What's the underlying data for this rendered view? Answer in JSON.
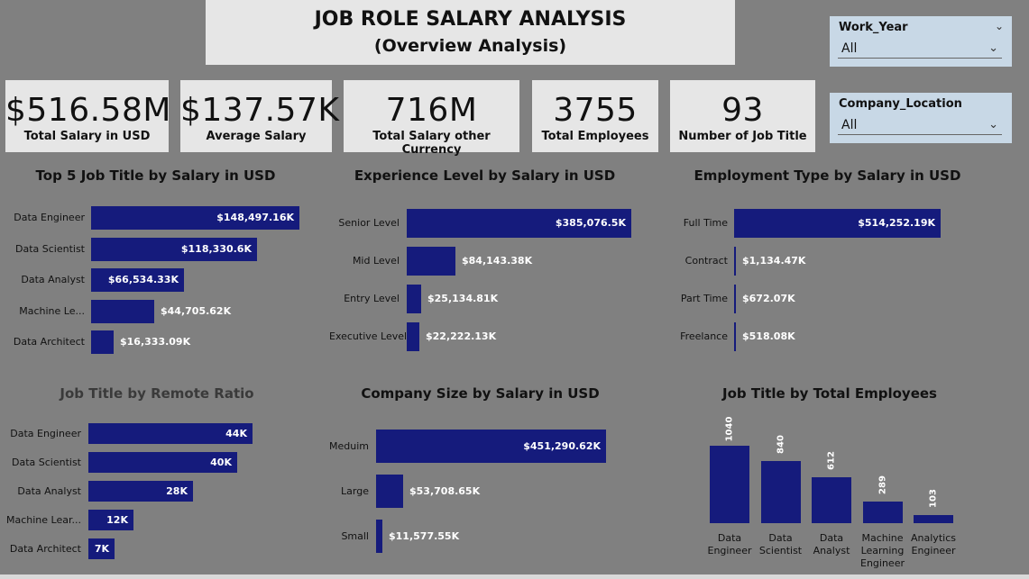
{
  "header": {
    "title": "JOB ROLE SALARY ANALYSIS",
    "subtitle": "(Overview Analysis)"
  },
  "slicers": [
    {
      "label": "Work_Year",
      "value": "All"
    },
    {
      "label": "Company_Location",
      "value": "All"
    }
  ],
  "kpis": [
    {
      "value": "$516.58M",
      "label": "Total Salary in USD"
    },
    {
      "value": "$137.57K",
      "label": "Average Salary"
    },
    {
      "value": "716M",
      "label": "Total Salary other Currency"
    },
    {
      "value": "3755",
      "label": "Total Employees"
    },
    {
      "value": "93",
      "label": "Number of Job Title"
    }
  ],
  "colors": {
    "bar": "#151b7c",
    "background": "#808080",
    "card": "#e6e6e6",
    "slicer": "#c8d8e6"
  },
  "chart_data": [
    {
      "type": "bar",
      "orientation": "horizontal",
      "title": "Top 5 Job Title by Salary in USD",
      "categories": [
        "Data Engineer",
        "Data Scientist",
        "Data Analyst",
        "Machine Le...",
        "Data Architect"
      ],
      "values": [
        148497.16,
        118330.6,
        66534.33,
        44705.62,
        16333.09
      ],
      "labels": [
        "$148,497.16K",
        "$118,330.6K",
        "$66,534.33K",
        "$44,705.62K",
        "$16,333.09K"
      ]
    },
    {
      "type": "bar",
      "orientation": "horizontal",
      "title": "Experience Level by Salary in USD",
      "categories": [
        "Senior Level",
        "Mid Level",
        "Entry Level",
        "Executive Level"
      ],
      "values": [
        385076.5,
        84143.38,
        25134.81,
        22222.13
      ],
      "labels": [
        "$385,076.5K",
        "$84,143.38K",
        "$25,134.81K",
        "$22,222.13K"
      ]
    },
    {
      "type": "bar",
      "orientation": "horizontal",
      "title": "Employment Type by Salary in USD",
      "categories": [
        "Full Time",
        "Contract",
        "Part Time",
        "Freelance"
      ],
      "values": [
        514252.19,
        1134.47,
        672.07,
        518.08
      ],
      "labels": [
        "$514,252.19K",
        "$1,134.47K",
        "$672.07K",
        "$518.08K"
      ]
    },
    {
      "type": "bar",
      "orientation": "horizontal",
      "title": "Job Title by Remote Ratio",
      "categories": [
        "Data Engineer",
        "Data Scientist",
        "Data Analyst",
        "Machine Lear...",
        "Data Architect"
      ],
      "values": [
        44,
        40,
        28,
        12,
        7
      ],
      "labels": [
        "44K",
        "40K",
        "28K",
        "12K",
        "7K"
      ]
    },
    {
      "type": "bar",
      "orientation": "horizontal",
      "title": "Company Size by Salary in USD",
      "categories": [
        "Meduim",
        "Large",
        "Small"
      ],
      "values": [
        451290.62,
        53708.65,
        11577.55
      ],
      "labels": [
        "$451,290.62K",
        "$53,708.65K",
        "$11,577.55K"
      ]
    },
    {
      "type": "bar",
      "orientation": "vertical",
      "title": "Job Title by Total Employees",
      "categories": [
        "Data Engineer",
        "Data Scientist",
        "Data Analyst",
        "Machine Learning Engineer",
        "Analytics Engineer"
      ],
      "values": [
        1040,
        840,
        612,
        289,
        103
      ],
      "labels": [
        "1040",
        "840",
        "612",
        "289",
        "103"
      ]
    }
  ]
}
